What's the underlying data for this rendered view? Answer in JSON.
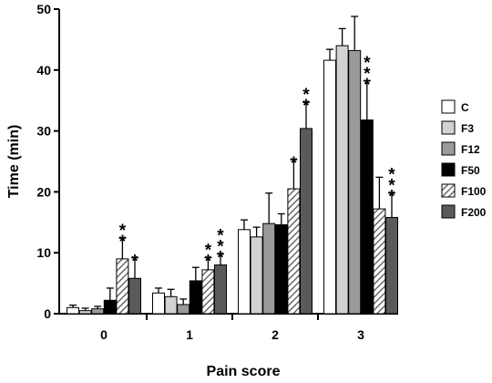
{
  "chart_data": {
    "type": "bar",
    "title": "",
    "xlabel": "Pain score",
    "ylabel": "Time (min)",
    "ylim": [
      0,
      50
    ],
    "yticks": [
      0,
      10,
      20,
      30,
      40,
      50
    ],
    "categories": [
      "0",
      "1",
      "2",
      "3"
    ],
    "legend_position": "right",
    "series": [
      {
        "name": "C",
        "fill": "#ffffff",
        "pattern": "none",
        "values": [
          1.0,
          3.4,
          13.8,
          41.6
        ],
        "errors": [
          0.4,
          0.8,
          1.6,
          1.8
        ],
        "annotations": [
          "",
          "",
          "",
          ""
        ]
      },
      {
        "name": "F3",
        "fill": "#d2d2d2",
        "pattern": "none",
        "values": [
          0.5,
          2.8,
          12.6,
          44.0
        ],
        "errors": [
          0.4,
          1.2,
          1.6,
          2.8
        ],
        "annotations": [
          "",
          "",
          "",
          ""
        ]
      },
      {
        "name": "F12",
        "fill": "#9a9a9a",
        "pattern": "none",
        "values": [
          0.8,
          1.5,
          14.8,
          43.2
        ],
        "errors": [
          0.4,
          0.9,
          5.0,
          5.6
        ],
        "annotations": [
          "",
          "",
          "",
          ""
        ]
      },
      {
        "name": "F50",
        "fill": "#000000",
        "pattern": "none",
        "values": [
          2.2,
          5.4,
          14.6,
          31.8
        ],
        "errors": [
          2.0,
          2.2,
          1.8,
          6.4
        ],
        "annotations": [
          "",
          "",
          "",
          "***"
        ]
      },
      {
        "name": "F100",
        "fill": "#ffffff",
        "pattern": "hatch",
        "values": [
          9.0,
          7.2,
          20.5,
          17.2
        ],
        "errors": [
          3.4,
          2.0,
          4.8,
          5.2
        ],
        "annotations": [
          "**",
          "**",
          "*",
          ""
        ]
      },
      {
        "name": "F200",
        "fill": "#5a5a5a",
        "pattern": "none",
        "values": [
          5.8,
          8.0,
          30.4,
          15.8
        ],
        "errors": [
          3.4,
          1.8,
          4.3,
          4.0
        ],
        "annotations": [
          "*",
          "***",
          "**",
          "***"
        ]
      }
    ]
  }
}
